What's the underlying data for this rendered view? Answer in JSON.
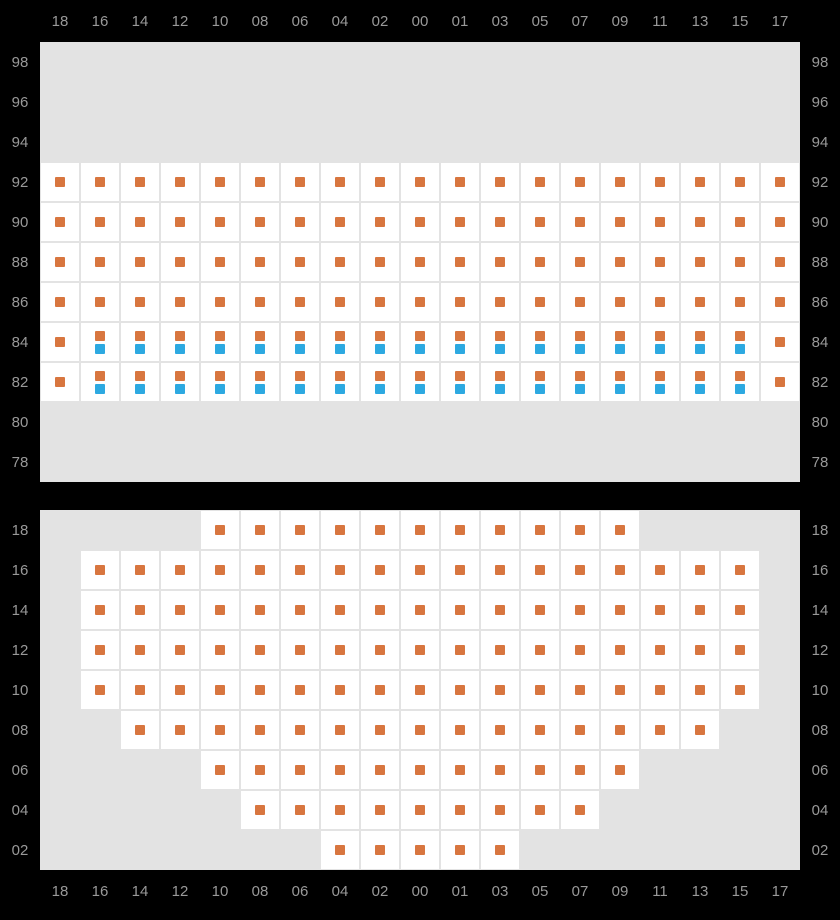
{
  "colors": {
    "orange": "#d8763f",
    "blue": "#2da9e1",
    "empty_bg": "#e3e3e3",
    "seat_bg": "#ffffff",
    "label": "#999999",
    "page_bg": "#000000"
  },
  "layout": {
    "cell_size": 40,
    "marker_size": 10,
    "columns": [
      "18",
      "16",
      "14",
      "12",
      "10",
      "08",
      "06",
      "04",
      "02",
      "00",
      "01",
      "03",
      "05",
      "07",
      "09",
      "11",
      "13",
      "15",
      "17"
    ]
  },
  "sections": [
    {
      "id": "upper",
      "col_labels_top": true,
      "col_labels_bottom": false,
      "rows": [
        {
          "label": "98",
          "cells": [
            "E",
            "E",
            "E",
            "E",
            "E",
            "E",
            "E",
            "E",
            "E",
            "E",
            "E",
            "E",
            "E",
            "E",
            "E",
            "E",
            "E",
            "E",
            "E"
          ]
        },
        {
          "label": "96",
          "cells": [
            "E",
            "E",
            "E",
            "E",
            "E",
            "E",
            "E",
            "E",
            "E",
            "E",
            "E",
            "E",
            "E",
            "E",
            "E",
            "E",
            "E",
            "E",
            "E"
          ]
        },
        {
          "label": "94",
          "cells": [
            "E",
            "E",
            "E",
            "E",
            "E",
            "E",
            "E",
            "E",
            "E",
            "E",
            "E",
            "E",
            "E",
            "E",
            "E",
            "E",
            "E",
            "E",
            "E"
          ]
        },
        {
          "label": "92",
          "cells": [
            "O",
            "O",
            "O",
            "O",
            "O",
            "O",
            "O",
            "O",
            "O",
            "O",
            "O",
            "O",
            "O",
            "O",
            "O",
            "O",
            "O",
            "O",
            "O"
          ]
        },
        {
          "label": "90",
          "cells": [
            "O",
            "O",
            "O",
            "O",
            "O",
            "O",
            "O",
            "O",
            "O",
            "O",
            "O",
            "O",
            "O",
            "O",
            "O",
            "O",
            "O",
            "O",
            "O"
          ]
        },
        {
          "label": "88",
          "cells": [
            "O",
            "O",
            "O",
            "O",
            "O",
            "O",
            "O",
            "O",
            "O",
            "O",
            "O",
            "O",
            "O",
            "O",
            "O",
            "O",
            "O",
            "O",
            "O"
          ]
        },
        {
          "label": "86",
          "cells": [
            "O",
            "O",
            "O",
            "O",
            "O",
            "O",
            "O",
            "O",
            "O",
            "O",
            "O",
            "O",
            "O",
            "O",
            "O",
            "O",
            "O",
            "O",
            "O"
          ]
        },
        {
          "label": "84",
          "cells": [
            "O",
            "OB",
            "OB",
            "OB",
            "OB",
            "OB",
            "OB",
            "OB",
            "OB",
            "OB",
            "OB",
            "OB",
            "OB",
            "OB",
            "OB",
            "OB",
            "OB",
            "OB",
            "O"
          ]
        },
        {
          "label": "82",
          "cells": [
            "O",
            "OB",
            "OB",
            "OB",
            "OB",
            "OB",
            "OB",
            "OB",
            "OB",
            "OB",
            "OB",
            "OB",
            "OB",
            "OB",
            "OB",
            "OB",
            "OB",
            "OB",
            "O"
          ]
        },
        {
          "label": "80",
          "cells": [
            "E",
            "E",
            "E",
            "E",
            "E",
            "E",
            "E",
            "E",
            "E",
            "E",
            "E",
            "E",
            "E",
            "E",
            "E",
            "E",
            "E",
            "E",
            "E"
          ]
        },
        {
          "label": "78",
          "cells": [
            "E",
            "E",
            "E",
            "E",
            "E",
            "E",
            "E",
            "E",
            "E",
            "E",
            "E",
            "E",
            "E",
            "E",
            "E",
            "E",
            "E",
            "E",
            "E"
          ]
        }
      ]
    },
    {
      "id": "lower",
      "col_labels_top": false,
      "col_labels_bottom": true,
      "rows": [
        {
          "label": "18",
          "cells": [
            "E",
            "E",
            "E",
            "E",
            "O",
            "O",
            "O",
            "O",
            "O",
            "O",
            "O",
            "O",
            "O",
            "O",
            "O",
            "E",
            "E",
            "E",
            "E"
          ]
        },
        {
          "label": "16",
          "cells": [
            "E",
            "O",
            "O",
            "O",
            "O",
            "O",
            "O",
            "O",
            "O",
            "O",
            "O",
            "O",
            "O",
            "O",
            "O",
            "O",
            "O",
            "O",
            "E"
          ]
        },
        {
          "label": "14",
          "cells": [
            "E",
            "O",
            "O",
            "O",
            "O",
            "O",
            "O",
            "O",
            "O",
            "O",
            "O",
            "O",
            "O",
            "O",
            "O",
            "O",
            "O",
            "O",
            "E"
          ]
        },
        {
          "label": "12",
          "cells": [
            "E",
            "O",
            "O",
            "O",
            "O",
            "O",
            "O",
            "O",
            "O",
            "O",
            "O",
            "O",
            "O",
            "O",
            "O",
            "O",
            "O",
            "O",
            "E"
          ]
        },
        {
          "label": "10",
          "cells": [
            "E",
            "O",
            "O",
            "O",
            "O",
            "O",
            "O",
            "O",
            "O",
            "O",
            "O",
            "O",
            "O",
            "O",
            "O",
            "O",
            "O",
            "O",
            "E"
          ]
        },
        {
          "label": "08",
          "cells": [
            "E",
            "E",
            "O",
            "O",
            "O",
            "O",
            "O",
            "O",
            "O",
            "O",
            "O",
            "O",
            "O",
            "O",
            "O",
            "O",
            "O",
            "E",
            "E"
          ]
        },
        {
          "label": "06",
          "cells": [
            "E",
            "E",
            "E",
            "E",
            "O",
            "O",
            "O",
            "O",
            "O",
            "O",
            "O",
            "O",
            "O",
            "O",
            "O",
            "E",
            "E",
            "E",
            "E"
          ]
        },
        {
          "label": "04",
          "cells": [
            "E",
            "E",
            "E",
            "E",
            "E",
            "O",
            "O",
            "O",
            "O",
            "O",
            "O",
            "O",
            "O",
            "O",
            "E",
            "E",
            "E",
            "E",
            "E"
          ]
        },
        {
          "label": "02",
          "cells": [
            "E",
            "E",
            "E",
            "E",
            "E",
            "E",
            "E",
            "O",
            "O",
            "O",
            "O",
            "O",
            "E",
            "E",
            "E",
            "E",
            "E",
            "E",
            "E"
          ]
        }
      ]
    }
  ]
}
